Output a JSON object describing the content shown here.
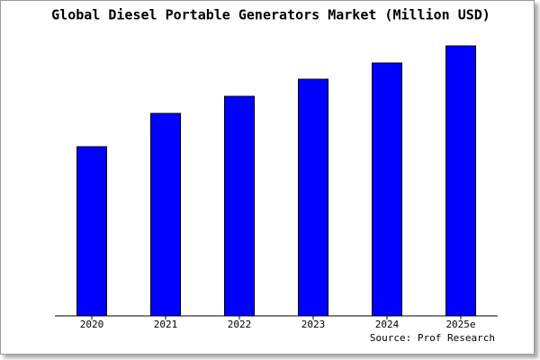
{
  "chart_data": {
    "type": "bar",
    "title": "Global Diesel Portable Generators Market (Million USD)",
    "categories": [
      "2020",
      "2021",
      "2022",
      "2023",
      "2024",
      "2025e"
    ],
    "values": [
      188,
      225,
      244,
      263,
      281,
      300
    ],
    "color": "#0000ff",
    "ylim": [
      0,
      302
    ],
    "source": "Source: Prof Research"
  }
}
